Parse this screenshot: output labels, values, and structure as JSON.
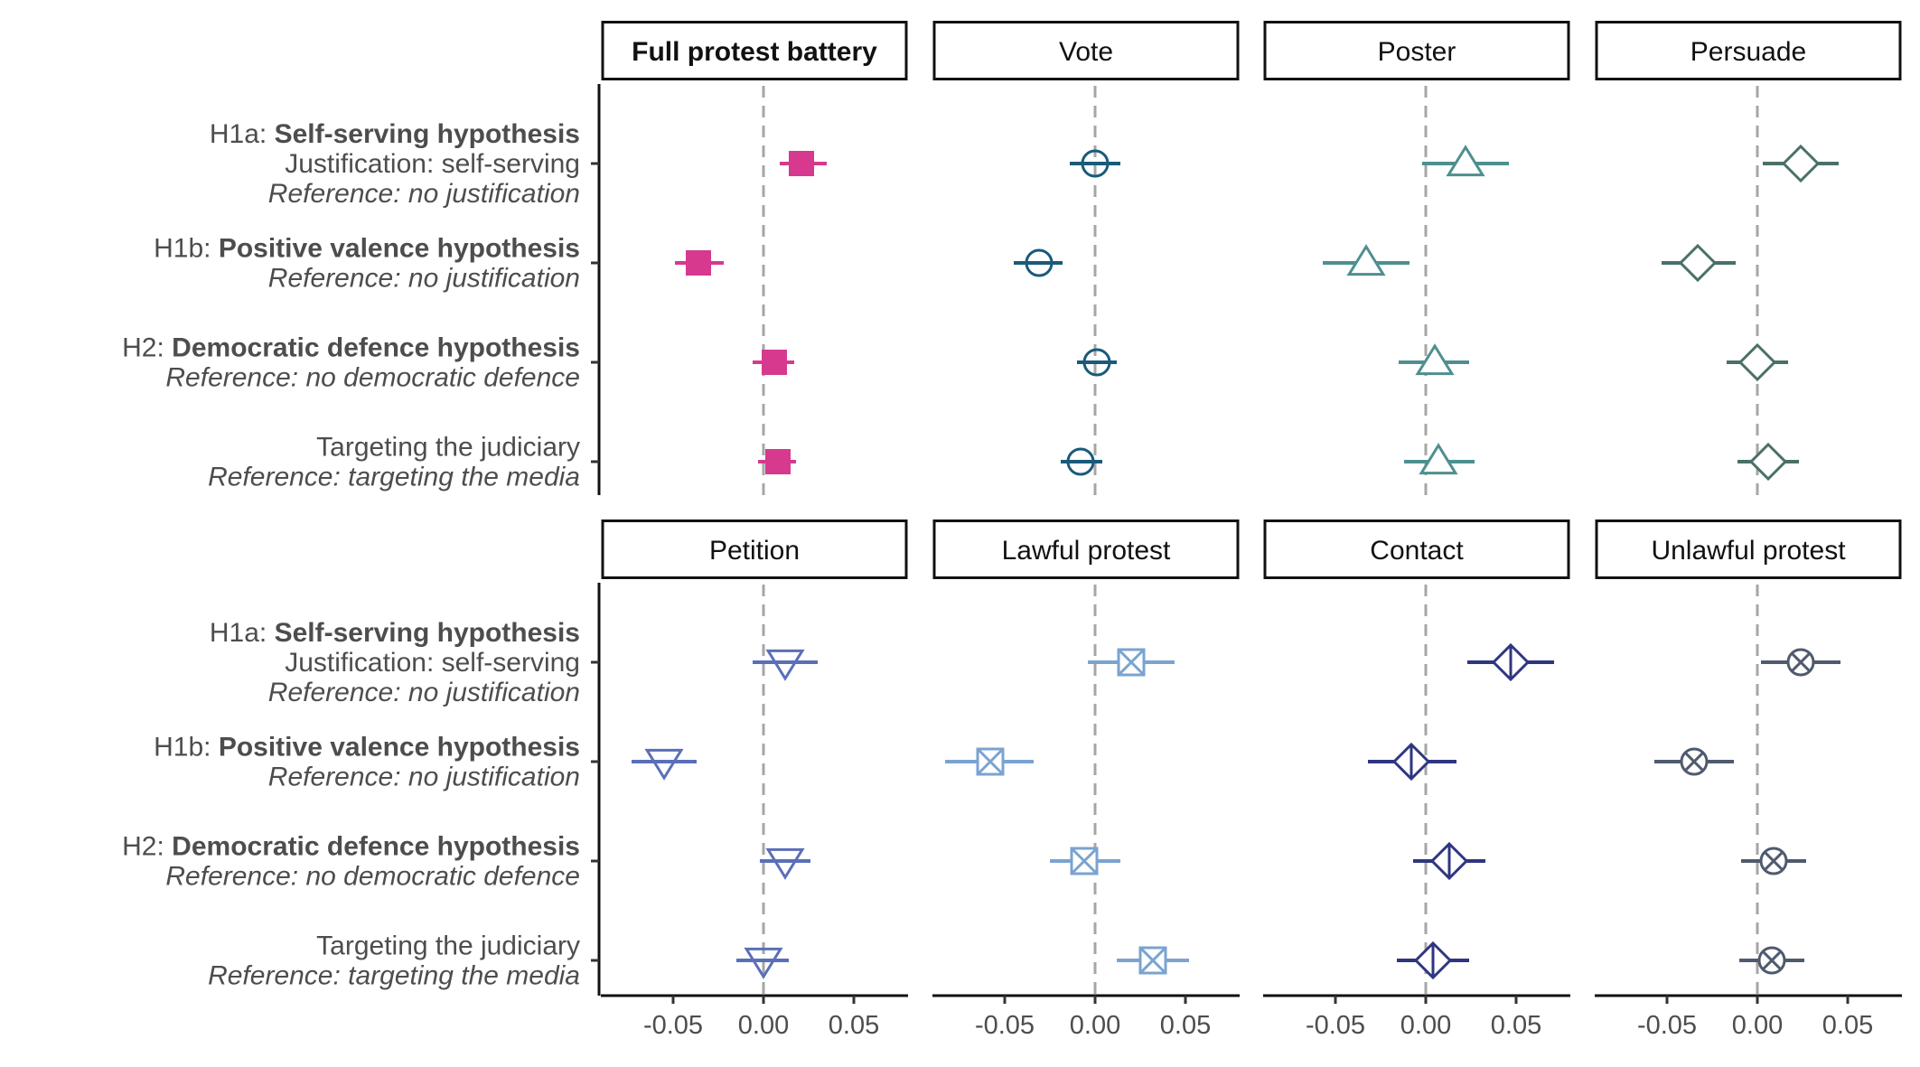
{
  "chart_data": {
    "type": "forest",
    "xlim": [
      -0.09,
      0.08
    ],
    "x_ticks": [
      -0.05,
      0.0,
      0.05
    ],
    "x_tick_labels": [
      "-0.05",
      "0.00",
      "0.05"
    ],
    "reference_line": 0,
    "grid": false,
    "legend": "none",
    "rows": [
      {
        "prefix": "H1a: ",
        "bold": "Self-serving hypothesis",
        "line2": "Justification: self-serving",
        "ref": "Reference: no justification"
      },
      {
        "prefix": "H1b: ",
        "bold": "Positive valence hypothesis",
        "line2": "",
        "ref": "Reference: no justification"
      },
      {
        "prefix": "H2: ",
        "bold": "Democratic defence hypothesis",
        "line2": "",
        "ref": "Reference: no democratic defence"
      },
      {
        "prefix": "Targeting the judiciary",
        "bold": "",
        "line2": "",
        "ref": "Reference: targeting the media"
      }
    ],
    "panels": [
      {
        "title": "Full protest battery",
        "title_bold": true,
        "color": "#d6398e",
        "marker": "square-filled",
        "estimates": [
          0.021,
          -0.036,
          0.006,
          0.008
        ],
        "ci_low": [
          0.009,
          -0.049,
          -0.006,
          -0.003
        ],
        "ci_high": [
          0.035,
          -0.022,
          0.017,
          0.018
        ]
      },
      {
        "title": "Vote",
        "title_bold": false,
        "color": "#1a5a7a",
        "marker": "circle",
        "estimates": [
          0.0,
          -0.031,
          0.001,
          -0.008
        ],
        "ci_low": [
          -0.014,
          -0.045,
          -0.01,
          -0.019
        ],
        "ci_high": [
          0.014,
          -0.018,
          0.012,
          0.004
        ]
      },
      {
        "title": "Poster",
        "title_bold": false,
        "color": "#4e8f8f",
        "marker": "triangle-up",
        "estimates": [
          0.022,
          -0.033,
          0.005,
          0.007
        ],
        "ci_low": [
          -0.002,
          -0.057,
          -0.015,
          -0.012
        ],
        "ci_high": [
          0.046,
          -0.009,
          0.024,
          0.027
        ]
      },
      {
        "title": "Persuade",
        "title_bold": false,
        "color": "#4a7068",
        "marker": "diamond",
        "estimates": [
          0.024,
          -0.033,
          0.0,
          0.006
        ],
        "ci_low": [
          0.003,
          -0.053,
          -0.017,
          -0.011
        ],
        "ci_high": [
          0.045,
          -0.012,
          0.017,
          0.023
        ]
      },
      {
        "title": "Petition",
        "title_bold": false,
        "color": "#5b6fb8",
        "marker": "triangle-down",
        "estimates": [
          0.012,
          -0.055,
          0.012,
          0.0
        ],
        "ci_low": [
          -0.006,
          -0.073,
          -0.002,
          -0.015
        ],
        "ci_high": [
          0.03,
          -0.037,
          0.026,
          0.014
        ]
      },
      {
        "title": "Lawful protest",
        "title_bold": false,
        "color": "#7aa3d0",
        "marker": "square-x",
        "estimates": [
          0.02,
          -0.058,
          -0.006,
          0.032
        ],
        "ci_low": [
          -0.004,
          -0.083,
          -0.025,
          0.012
        ],
        "ci_high": [
          0.044,
          -0.034,
          0.014,
          0.052
        ]
      },
      {
        "title": "Contact",
        "title_bold": false,
        "color": "#2e3680",
        "marker": "diamond-plus",
        "estimates": [
          0.047,
          -0.008,
          0.013,
          0.004
        ],
        "ci_low": [
          0.023,
          -0.032,
          -0.007,
          -0.016
        ],
        "ci_high": [
          0.071,
          0.017,
          0.033,
          0.024
        ]
      },
      {
        "title": "Unlawful protest",
        "title_bold": false,
        "color": "#4f5a6e",
        "marker": "circle-x",
        "estimates": [
          0.024,
          -0.035,
          0.009,
          0.008
        ],
        "ci_low": [
          0.002,
          -0.057,
          -0.009,
          -0.01
        ],
        "ci_high": [
          0.046,
          -0.013,
          0.027,
          0.026
        ]
      }
    ]
  }
}
